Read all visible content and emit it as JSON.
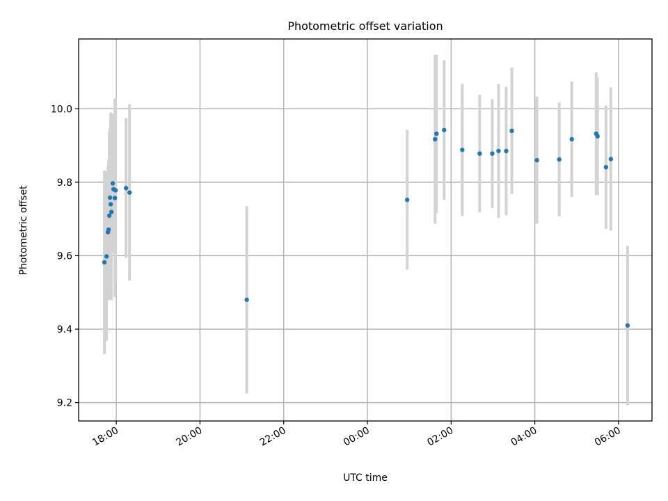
{
  "chart_data": {
    "type": "scatter",
    "title": "Photometric offset variation",
    "xlabel": "UTC time",
    "ylabel": "Photometric offset",
    "x_ticks": [
      "18:00",
      "20:00",
      "22:00",
      "00:00",
      "02:00",
      "04:00",
      "06:00"
    ],
    "y_ticks": [
      "9.2",
      "9.4",
      "9.6",
      "9.8",
      "10.0"
    ],
    "y_tick_values": [
      9.2,
      9.4,
      9.6,
      9.8,
      10.0
    ],
    "xlim": [
      "17:06",
      "06:48"
    ],
    "ylim": [
      9.15,
      10.19
    ],
    "grid": true,
    "colors": {
      "points": "#1f77b4",
      "error_bars": "#d3d3d3"
    },
    "points": [
      {
        "t": "17:43",
        "y": 9.582,
        "err": 0.25
      },
      {
        "t": "17:46",
        "y": 9.598,
        "err": 0.23
      },
      {
        "t": "17:48",
        "y": 9.664,
        "err": 0.18
      },
      {
        "t": "17:49",
        "y": 9.671,
        "err": 0.19
      },
      {
        "t": "17:50",
        "y": 9.709,
        "err": 0.23
      },
      {
        "t": "17:51",
        "y": 9.758,
        "err": 0.19
      },
      {
        "t": "17:52",
        "y": 9.74,
        "err": 0.25
      },
      {
        "t": "17:53",
        "y": 9.719,
        "err": 0.24
      },
      {
        "t": "17:55",
        "y": 9.797,
        "err": 0.19
      },
      {
        "t": "17:56",
        "y": 9.781,
        "err": 0.17
      },
      {
        "t": "17:58",
        "y": 9.757,
        "err": 0.27
      },
      {
        "t": "17:59",
        "y": 9.778,
        "err": 0.25
      },
      {
        "t": "18:14",
        "y": 9.784,
        "err": 0.19
      },
      {
        "t": "18:19",
        "y": 9.772,
        "err": 0.24
      },
      {
        "t": "21:07",
        "y": 9.48,
        "err": 0.255
      },
      {
        "t": "00:57",
        "y": 9.752,
        "err": 0.19
      },
      {
        "t": "01:37",
        "y": 9.917,
        "err": 0.23
      },
      {
        "t": "01:39",
        "y": 9.932,
        "err": 0.215
      },
      {
        "t": "01:50",
        "y": 9.942,
        "err": 0.19
      },
      {
        "t": "02:16",
        "y": 9.888,
        "err": 0.18
      },
      {
        "t": "02:41",
        "y": 9.878,
        "err": 0.16
      },
      {
        "t": "02:59",
        "y": 9.878,
        "err": 0.148
      },
      {
        "t": "03:08",
        "y": 9.885,
        "err": 0.182
      },
      {
        "t": "03:19",
        "y": 9.885,
        "err": 0.175
      },
      {
        "t": "03:27",
        "y": 9.94,
        "err": 0.172
      },
      {
        "t": "04:03",
        "y": 9.86,
        "err": 0.173
      },
      {
        "t": "04:35",
        "y": 9.862,
        "err": 0.155
      },
      {
        "t": "04:53",
        "y": 9.917,
        "err": 0.157
      },
      {
        "t": "05:28",
        "y": 9.932,
        "err": 0.167
      },
      {
        "t": "05:30",
        "y": 9.925,
        "err": 0.16
      },
      {
        "t": "05:42",
        "y": 9.841,
        "err": 0.168
      },
      {
        "t": "05:49",
        "y": 9.863,
        "err": 0.195
      },
      {
        "t": "06:13",
        "y": 9.41,
        "err": 0.217
      }
    ]
  }
}
